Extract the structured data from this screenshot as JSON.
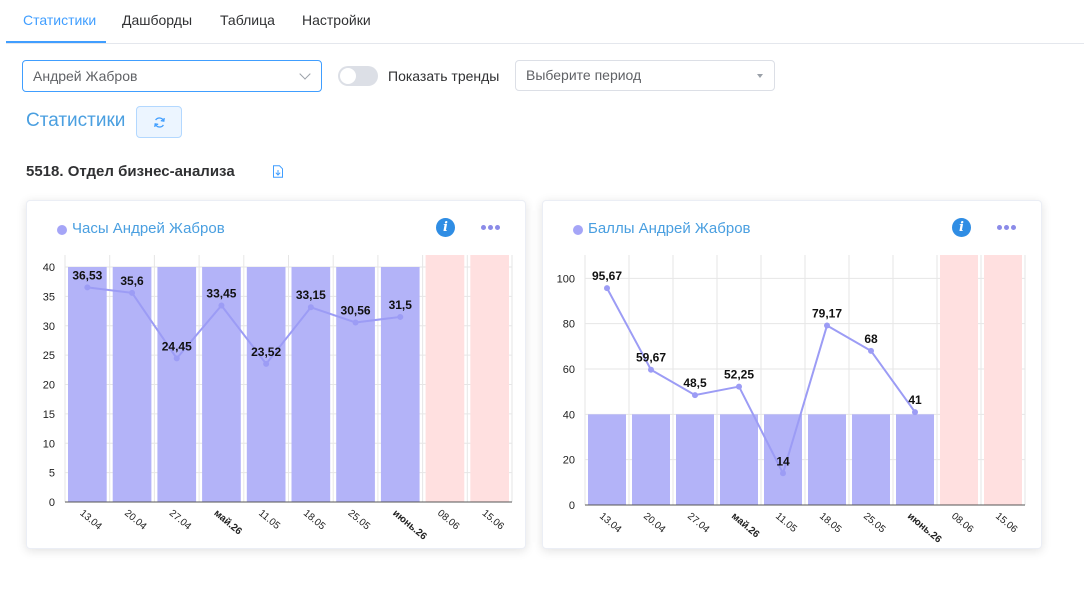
{
  "tabs": [
    {
      "label": "Статистики"
    },
    {
      "label": "Дашборды"
    },
    {
      "label": "Таблица"
    },
    {
      "label": "Настройки"
    }
  ],
  "filters": {
    "user": "Андрей Жабров",
    "trend_label": "Показать тренды",
    "trend_enabled": false,
    "period_placeholder": "Выберите период"
  },
  "section_title": "Статистики",
  "department": "5518. Отдел бизнес-анализа",
  "colors": {
    "accent": "#409eff",
    "bar": "#b3b3f8",
    "future": "#ffe0e0",
    "line": "#9c9cf5"
  },
  "cards": [
    {
      "title": "Часы Андрей Жабров",
      "chart_data": {
        "type": "bar",
        "categories": [
          "13.04",
          "20.04",
          "27.04",
          "май.26",
          "11.05",
          "18.05",
          "25.05",
          "июнь.26",
          "08.06",
          "15.06"
        ],
        "bold_categories": [
          "май.26",
          "июнь.26"
        ],
        "future_categories": [
          "08.06",
          "15.06"
        ],
        "bar_values": [
          40,
          40,
          40,
          40,
          40,
          40,
          40,
          40,
          null,
          null
        ],
        "series": [
          {
            "values": [
              36.53,
              35.6,
              24.45,
              33.45,
              23.52,
              33.15,
              30.56,
              31.5,
              null,
              null
            ]
          }
        ],
        "labels": [
          "36,53",
          "35,6",
          "24,45",
          "33,45",
          "23,52",
          "33,15",
          "30,56",
          "31,5",
          null,
          null
        ],
        "yticks": [
          "0",
          "5",
          "10",
          "15",
          "20",
          "25",
          "30",
          "35",
          "40"
        ],
        "ylim": [
          0,
          40
        ],
        "grid": true
      }
    },
    {
      "title": "Баллы Андрей Жабров",
      "chart_data": {
        "type": "bar",
        "categories": [
          "13.04",
          "20.04",
          "27.04",
          "май.26",
          "11.05",
          "18.05",
          "25.05",
          "июнь.26",
          "08.06",
          "15.06"
        ],
        "bold_categories": [
          "май.26",
          "июнь.26"
        ],
        "future_categories": [
          "08.06",
          "15.06"
        ],
        "bar_values": [
          40,
          40,
          40,
          40,
          40,
          40,
          40,
          40,
          null,
          null
        ],
        "series": [
          {
            "values": [
              95.67,
              59.67,
              48.5,
              52.25,
              14,
              79.17,
              68,
              41,
              null,
              null
            ]
          }
        ],
        "labels": [
          "95,67",
          "59,67",
          "48,5",
          "52,25",
          "14",
          "79,17",
          "68",
          "41",
          null,
          null
        ],
        "yticks": [
          "0",
          "20",
          "40",
          "60",
          "80",
          "100"
        ],
        "ylim": [
          0,
          105
        ],
        "grid": true
      }
    }
  ]
}
